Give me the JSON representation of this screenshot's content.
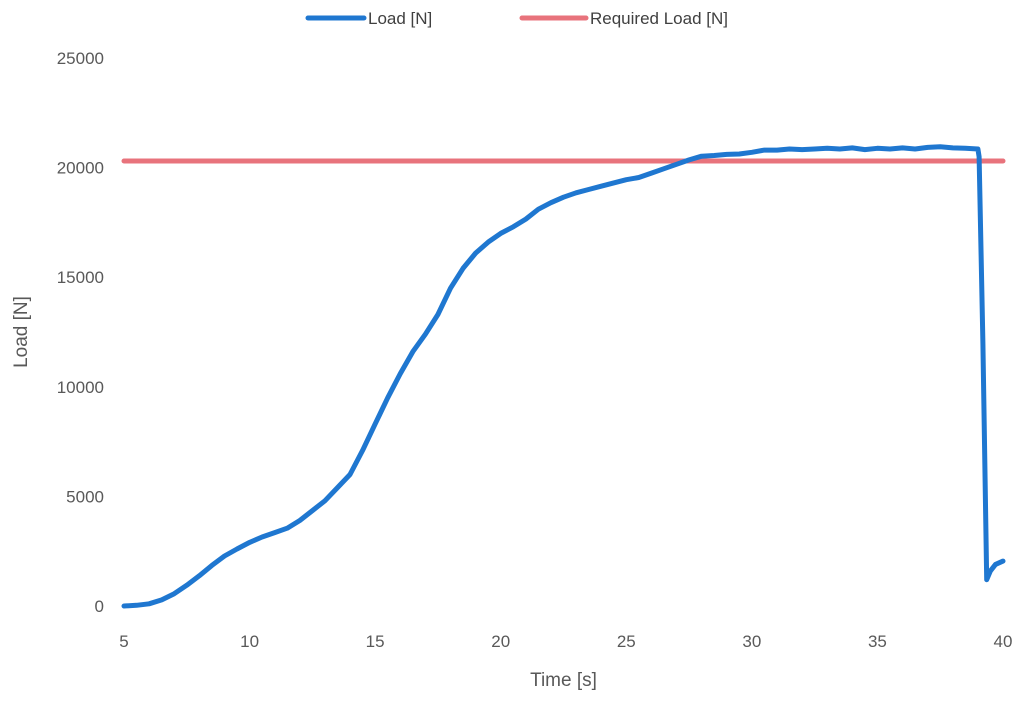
{
  "chart_data": {
    "type": "line",
    "title": "",
    "xlabel": "Time [s]",
    "ylabel": "Load [N]",
    "xlim": [
      5,
      40
    ],
    "ylim": [
      0,
      25000
    ],
    "xticks": [
      5,
      10,
      15,
      20,
      25,
      30,
      35,
      40
    ],
    "xtick_labels": [
      "5",
      "10",
      "15",
      "20",
      "25",
      "30",
      "35",
      "40"
    ],
    "yticks": [
      0,
      5000,
      10000,
      15000,
      20000,
      25000
    ],
    "ytick_labels": [
      "0",
      "5000",
      "10000",
      "15000",
      "20000",
      "25000"
    ],
    "grid": false,
    "legend_position": "top",
    "series": [
      {
        "name": "Load [N]",
        "color": "#1f77d0",
        "points": [
          [
            5.0,
            0
          ],
          [
            5.5,
            30
          ],
          [
            6.0,
            100
          ],
          [
            6.5,
            280
          ],
          [
            7.0,
            560
          ],
          [
            7.5,
            950
          ],
          [
            8.0,
            1380
          ],
          [
            8.5,
            1850
          ],
          [
            9.0,
            2280
          ],
          [
            9.5,
            2600
          ],
          [
            10.0,
            2900
          ],
          [
            10.5,
            3150
          ],
          [
            11.0,
            3350
          ],
          [
            11.5,
            3550
          ],
          [
            12.0,
            3900
          ],
          [
            12.5,
            4350
          ],
          [
            13.0,
            4800
          ],
          [
            13.5,
            5400
          ],
          [
            14.0,
            6000
          ],
          [
            14.5,
            7100
          ],
          [
            15.0,
            8300
          ],
          [
            15.5,
            9500
          ],
          [
            16.0,
            10600
          ],
          [
            16.5,
            11600
          ],
          [
            17.0,
            12400
          ],
          [
            17.5,
            13300
          ],
          [
            18.0,
            14500
          ],
          [
            18.5,
            15400
          ],
          [
            19.0,
            16100
          ],
          [
            19.5,
            16600
          ],
          [
            20.0,
            17000
          ],
          [
            20.5,
            17300
          ],
          [
            21.0,
            17650
          ],
          [
            21.5,
            18100
          ],
          [
            22.0,
            18400
          ],
          [
            22.5,
            18650
          ],
          [
            23.0,
            18850
          ],
          [
            23.5,
            19000
          ],
          [
            24.0,
            19150
          ],
          [
            24.5,
            19300
          ],
          [
            25.0,
            19450
          ],
          [
            25.5,
            19550
          ],
          [
            26.0,
            19750
          ],
          [
            26.5,
            19950
          ],
          [
            27.0,
            20150
          ],
          [
            27.5,
            20350
          ],
          [
            28.0,
            20520
          ],
          [
            28.5,
            20550
          ],
          [
            29.0,
            20600
          ],
          [
            29.5,
            20620
          ],
          [
            30.0,
            20700
          ],
          [
            30.5,
            20800
          ],
          [
            31.0,
            20800
          ],
          [
            31.5,
            20850
          ],
          [
            32.0,
            20820
          ],
          [
            32.5,
            20850
          ],
          [
            33.0,
            20880
          ],
          [
            33.5,
            20850
          ],
          [
            34.0,
            20900
          ],
          [
            34.5,
            20820
          ],
          [
            35.0,
            20880
          ],
          [
            35.5,
            20850
          ],
          [
            36.0,
            20900
          ],
          [
            36.5,
            20850
          ],
          [
            37.0,
            20920
          ],
          [
            37.5,
            20950
          ],
          [
            38.0,
            20900
          ],
          [
            38.5,
            20880
          ],
          [
            39.0,
            20850
          ],
          [
            39.05,
            20500
          ],
          [
            39.2,
            12000
          ],
          [
            39.35,
            1200
          ],
          [
            39.5,
            1600
          ],
          [
            39.7,
            1900
          ],
          [
            40.0,
            2050
          ]
        ]
      },
      {
        "name": "Required Load [N]",
        "color": "#e8737c",
        "points": [
          [
            5,
            20300
          ],
          [
            40,
            20300
          ]
        ]
      }
    ]
  }
}
